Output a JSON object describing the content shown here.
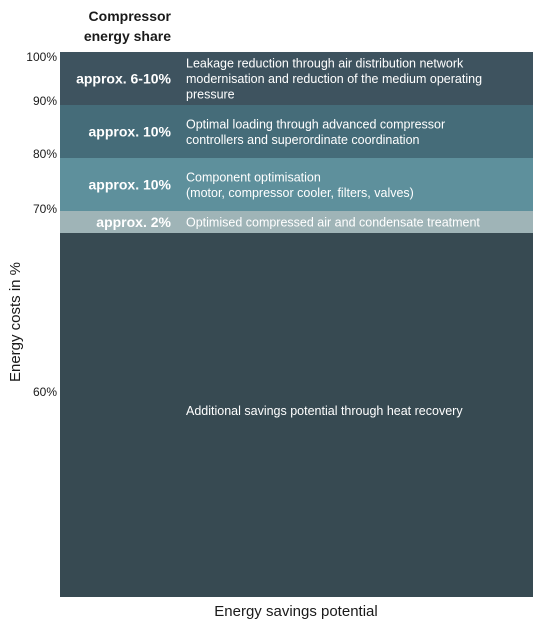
{
  "chart_data": {
    "type": "bar",
    "stacked": true,
    "title_lines": [
      "Compressor",
      "energy share"
    ],
    "xlabel": "Energy savings potential",
    "ylabel": "Energy costs in %",
    "y_ticks": [
      "100%",
      "90%",
      "80%",
      "70%",
      "60%"
    ],
    "segments": [
      {
        "share": "approx. 6-10%",
        "description": [
          "Leakage reduction through air distribution network",
          "modernisation and reduction of the medium operating",
          "pressure"
        ],
        "color": "#3e535f"
      },
      {
        "share": "approx. 10%",
        "description": [
          "Optimal loading through advanced compressor",
          "controllers and superordinate coordination"
        ],
        "color": "#456c79"
      },
      {
        "share": "approx. 10%",
        "description": [
          "Component optimisation",
          "(motor, compressor cooler, filters, valves)"
        ],
        "color": "#5e909c"
      },
      {
        "share": "approx. 2%",
        "description": [
          "Optimised compressed air and condensate treatment"
        ],
        "color": "#9fb4b7"
      },
      {
        "share": "",
        "description": [
          "Additional savings potential through heat recovery"
        ],
        "color": "#374a52"
      }
    ]
  }
}
